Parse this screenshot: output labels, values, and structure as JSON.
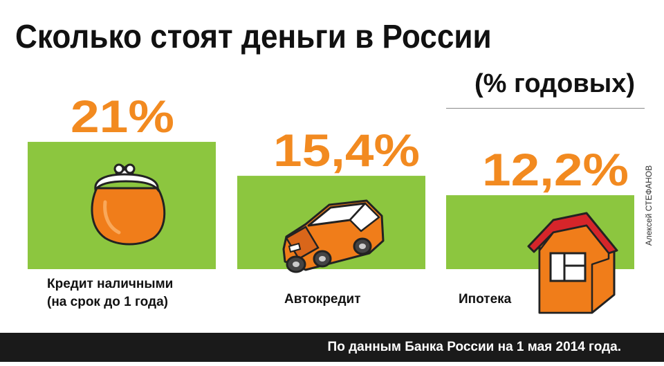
{
  "title": "Сколько стоят деньги в России",
  "unit": "(% годовых)",
  "credit": "Алексей СТЕФАНОВ",
  "footer": "По данным Банка России на 1 мая 2014 года.",
  "colors": {
    "bar": "#8cc63f",
    "value": "#f28a20",
    "footer": "#1a1a1a"
  },
  "chart_data": {
    "type": "bar",
    "categories": [
      "Кредит наличными (на срок до 1 года)",
      "Автокредит",
      "Ипотека"
    ],
    "values": [
      21,
      15.4,
      12.2
    ],
    "value_labels": [
      "21%",
      "15,4%",
      "12,2%"
    ],
    "label_lines": [
      [
        "Кредит наличными",
        "(на срок до 1 года)"
      ],
      [
        "Автокредит"
      ],
      [
        "Ипотека"
      ]
    ],
    "icons": [
      "purse-icon",
      "car-icon",
      "house-icon"
    ],
    "title": "Сколько стоят деньги в России",
    "ylabel": "(% годовых)"
  }
}
